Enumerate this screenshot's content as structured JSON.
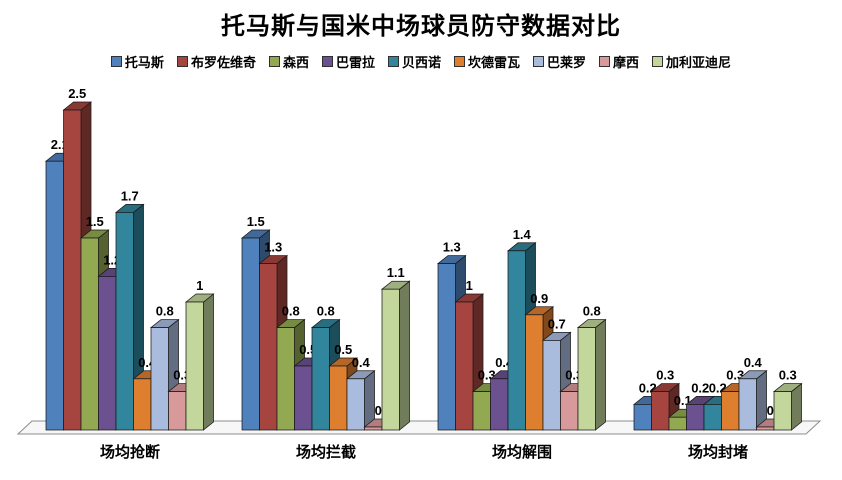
{
  "chart_data": {
    "type": "bar",
    "style": "3d-clustered-column",
    "title": "托马斯与国米中场球员防守数据对比",
    "categories": [
      "场均抢断",
      "场均拦截",
      "场均解围",
      "场均封堵"
    ],
    "series": [
      {
        "name": "托马斯",
        "color": "#4F81BD",
        "values": [
          2.1,
          1.5,
          1.3,
          0.2
        ]
      },
      {
        "name": "布罗佐维奇",
        "color": "#A6453F",
        "values": [
          2.5,
          1.3,
          1,
          0.3
        ]
      },
      {
        "name": "森西",
        "color": "#92A952",
        "values": [
          1.5,
          0.8,
          0.3,
          0.1
        ]
      },
      {
        "name": "巴雷拉",
        "color": "#6B5190",
        "values": [
          1.2,
          0.5,
          0.4,
          0.2
        ]
      },
      {
        "name": "贝西诺",
        "color": "#31859C",
        "values": [
          1.7,
          0.8,
          1.4,
          0.2
        ]
      },
      {
        "name": "坎德雷瓦",
        "color": "#DE7E2F",
        "values": [
          0.4,
          0.5,
          0.9,
          0.3
        ]
      },
      {
        "name": "巴莱罗",
        "color": "#A9BCDE",
        "values": [
          0.8,
          0.4,
          0.7,
          0.4
        ]
      },
      {
        "name": "摩西",
        "color": "#D8999B",
        "values": [
          0.3,
          0,
          0.3,
          0
        ]
      },
      {
        "name": "加利亚迪尼",
        "color": "#C3D69B",
        "values": [
          1,
          1.1,
          0.8,
          0.3
        ]
      }
    ],
    "data_labels": true,
    "legend_position": "top",
    "xlabel": "",
    "ylabel": "",
    "ylim": [
      0,
      2.5
    ],
    "axes_visible": false,
    "grid": false
  },
  "colors": {
    "background": "#FFFFFF",
    "text": "#000000",
    "bar_outline": "#1A1A1A",
    "floor_fill": "#F7F7F7",
    "floor_stroke": "#8C8C8C"
  }
}
